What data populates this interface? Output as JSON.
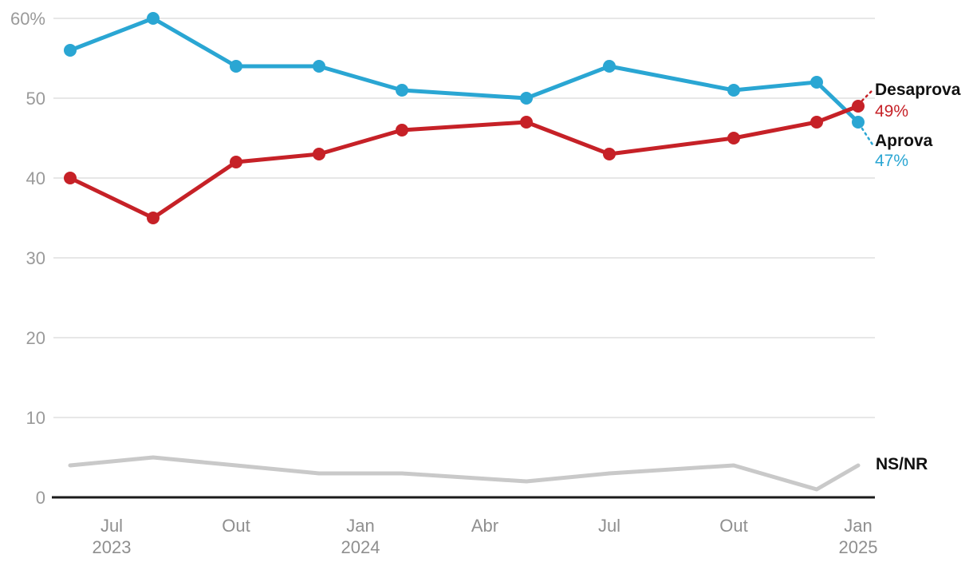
{
  "chart_data": {
    "type": "line",
    "title": "",
    "subtitle": "",
    "grid": true,
    "legend_position": "end-of-line-labels-right",
    "y_axis": {
      "min": 0,
      "max": 60,
      "step": 10,
      "tick_labels": [
        "0",
        "10",
        "20",
        "30",
        "40",
        "50",
        "60%"
      ]
    },
    "x_axis": {
      "unit": "months (Jun 2023 = 0)",
      "ticks": [
        {
          "month_index": 1,
          "line1": "Jul",
          "line2": "2023"
        },
        {
          "month_index": 4,
          "line1": "Out",
          "line2": ""
        },
        {
          "month_index": 7,
          "line1": "Jan",
          "line2": "2024"
        },
        {
          "month_index": 10,
          "line1": "Abr",
          "line2": ""
        },
        {
          "month_index": 13,
          "line1": "Jul",
          "line2": ""
        },
        {
          "month_index": 16,
          "line1": "Out",
          "line2": ""
        },
        {
          "month_index": 19,
          "line1": "Jan",
          "line2": "2025"
        }
      ]
    },
    "x_month_indices": [
      0,
      2,
      4,
      6,
      8,
      11,
      13,
      16,
      18,
      19
    ],
    "x_point_dates": [
      "jun/2023",
      "ago/2023",
      "out/2023",
      "dez/2023",
      "fev/2024",
      "mai/2024",
      "jul/2024",
      "out/2024",
      "dez/2024",
      "jan/2025"
    ],
    "series": [
      {
        "name": "NS/NR",
        "color": "#c9c9c9",
        "markers": false,
        "line_width": 5,
        "values": [
          4,
          5,
          4,
          3,
          3,
          2,
          3,
          4,
          1,
          4
        ],
        "end_label": "NS/NR",
        "end_value_label": "",
        "leader": false
      },
      {
        "name": "Aprova",
        "color": "#2aa6d3",
        "markers": true,
        "line_width": 5,
        "values": [
          56,
          60,
          54,
          54,
          51,
          50,
          54,
          51,
          52,
          47
        ],
        "end_label": "Aprova",
        "end_value_label": "47%",
        "leader": true,
        "leader_dir": "down"
      },
      {
        "name": "Desaprova",
        "color": "#c62127",
        "markers": true,
        "line_width": 5,
        "values": [
          40,
          35,
          42,
          43,
          46,
          47,
          43,
          45,
          47,
          49
        ],
        "end_label": "Desaprova",
        "end_value_label": "49%",
        "leader": true,
        "leader_dir": "up"
      }
    ]
  },
  "colors": {
    "approve_blue": "#2aa6d3",
    "disapprove_red": "#c62127",
    "nsnr_gray": "#c9c9c9",
    "gridline": "#e7e7e7",
    "axis_line": "#1b1b1b",
    "tick_text": "#9a9a9a",
    "label_text": "#111111"
  },
  "end_labels": {
    "desaprova_name": "Desaprova",
    "desaprova_value": "49%",
    "aprova_name": "Aprova",
    "aprova_value": "47%",
    "nsnr_name": "NS/NR"
  }
}
